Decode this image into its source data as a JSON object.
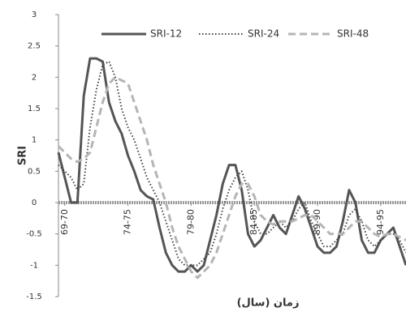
{
  "chart_data": {
    "type": "line",
    "y_label": "SRI",
    "x_label": "زمان (سال)",
    "x": [
      -0.5,
      0,
      0.5,
      1,
      1.5,
      2,
      2.5,
      3,
      3.5,
      4,
      4.5,
      5,
      5.5,
      6,
      6.5,
      7,
      7.5,
      8,
      8.5,
      9,
      9.5,
      10,
      10.5,
      11,
      11.5,
      12,
      12.5,
      13,
      13.5,
      14,
      14.5,
      15,
      15.5,
      16,
      16.5,
      17,
      17.5,
      18,
      18.5,
      19,
      19.5,
      20,
      20.5,
      21,
      21.5,
      22,
      22.5,
      23,
      23.5,
      24,
      24.5,
      25,
      25.5,
      26,
      26.5,
      27
    ],
    "series": [
      {
        "name": "SRI-12",
        "color": "#555555",
        "style": "solid",
        "values": [
          0.8,
          0.4,
          0,
          0,
          1.7,
          2.3,
          2.3,
          2.25,
          1.6,
          1.3,
          1.1,
          0.75,
          0.5,
          0.2,
          0.1,
          0.05,
          -0.4,
          -0.8,
          -1.0,
          -1.1,
          -1.1,
          -1.0,
          -1.1,
          -1.0,
          -0.6,
          -0.2,
          0.3,
          0.6,
          0.6,
          0.2,
          -0.5,
          -0.7,
          -0.6,
          -0.4,
          -0.2,
          -0.4,
          -0.5,
          -0.2,
          0.1,
          -0.1,
          -0.4,
          -0.7,
          -0.8,
          -0.8,
          -0.7,
          -0.3,
          0.2,
          0.0,
          -0.6,
          -0.8,
          -0.8,
          -0.6,
          -0.5,
          -0.4,
          -0.7,
          -1.0
        ]
      },
      {
        "name": "SRI-24",
        "color": "#444444",
        "style": "dotted",
        "values": [
          0.6,
          0.5,
          0.4,
          0.2,
          0.3,
          1.2,
          1.8,
          2.2,
          2.25,
          2.0,
          1.5,
          1.2,
          1.0,
          0.7,
          0.4,
          0.2,
          0.0,
          -0.3,
          -0.6,
          -0.9,
          -1.0,
          -1.0,
          -1.0,
          -0.9,
          -0.8,
          -0.5,
          -0.1,
          0.2,
          0.4,
          0.5,
          0.2,
          -0.3,
          -0.5,
          -0.5,
          -0.4,
          -0.3,
          -0.4,
          -0.3,
          -0.1,
          0.0,
          -0.3,
          -0.5,
          -0.7,
          -0.7,
          -0.6,
          -0.5,
          -0.2,
          -0.1,
          -0.3,
          -0.6,
          -0.7,
          -0.6,
          -0.5,
          -0.5,
          -0.6,
          -0.8
        ]
      },
      {
        "name": "SRI-48",
        "color": "#b5b5b5",
        "style": "dashed",
        "values": [
          0.9,
          0.8,
          0.7,
          0.65,
          0.7,
          0.8,
          1.2,
          1.6,
          1.9,
          2.0,
          1.95,
          1.9,
          1.6,
          1.3,
          1.0,
          0.6,
          0.3,
          0.0,
          -0.4,
          -0.7,
          -0.9,
          -1.1,
          -1.2,
          -1.1,
          -1.0,
          -0.8,
          -0.5,
          -0.2,
          0.1,
          0.3,
          0.3,
          0.1,
          -0.2,
          -0.3,
          -0.35,
          -0.3,
          -0.3,
          -0.3,
          -0.25,
          -0.2,
          -0.2,
          -0.3,
          -0.4,
          -0.5,
          -0.5,
          -0.5,
          -0.4,
          -0.3,
          -0.3,
          -0.4,
          -0.5,
          -0.55,
          -0.5,
          -0.5,
          -0.55,
          -0.6
        ]
      }
    ],
    "xlim": [
      -0.5,
      27
    ],
    "xticks": [
      {
        "value": 0,
        "label": "69-70"
      },
      {
        "value": 5,
        "label": "74-75"
      },
      {
        "value": 10,
        "label": "79-80"
      },
      {
        "value": 15,
        "label": "84-85"
      },
      {
        "value": 20,
        "label": "89-90"
      },
      {
        "value": 25,
        "label": "94-95"
      }
    ],
    "ylim": [
      -1.5,
      3
    ],
    "yticks": [
      -1.5,
      -1,
      -0.5,
      0,
      0.5,
      1,
      1.5,
      2,
      2.5,
      3
    ],
    "legend": "top"
  }
}
